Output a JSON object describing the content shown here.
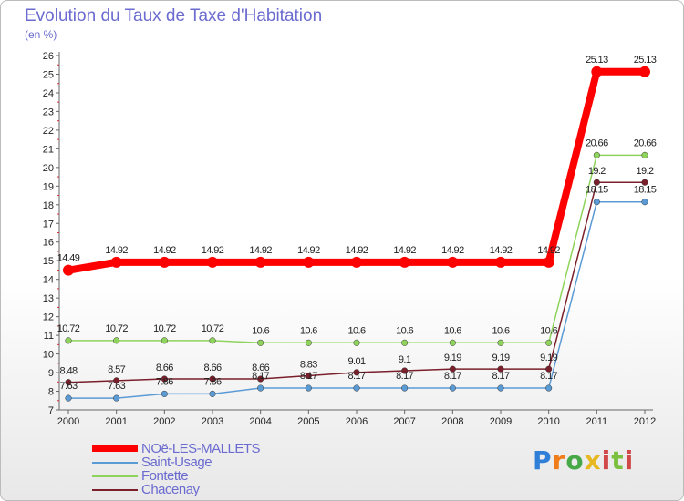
{
  "chart_data": {
    "type": "line",
    "title": "Evolution du Taux de Taxe d'Habitation",
    "unit": "(en %)",
    "x": [
      "2000",
      "2001",
      "2002",
      "2003",
      "2004",
      "2005",
      "2006",
      "2007",
      "2008",
      "2009",
      "2010",
      "2011",
      "2012"
    ],
    "y_ticks": [
      7,
      8,
      9,
      10,
      11,
      12,
      13,
      14,
      15,
      16,
      17,
      18,
      19,
      20,
      21,
      22,
      23,
      24,
      25,
      26
    ],
    "ylim": [
      7,
      26
    ],
    "grid": false,
    "legend_position": "bottom-left",
    "series": [
      {
        "name": "NOë-LES-MALLETS",
        "color": "#ff0000",
        "values": [
          14.49,
          14.92,
          14.92,
          14.92,
          14.92,
          14.92,
          14.92,
          14.92,
          14.92,
          14.92,
          14.92,
          25.13,
          25.13
        ]
      },
      {
        "name": "Saint-Usage",
        "color": "#5b9bd5",
        "values": [
          7.63,
          7.63,
          7.86,
          7.86,
          8.17,
          8.17,
          8.17,
          8.17,
          8.17,
          8.17,
          8.17,
          18.15,
          18.15
        ]
      },
      {
        "name": "Fontette",
        "color": "#8ed35c",
        "values": [
          10.72,
          10.72,
          10.72,
          10.72,
          10.6,
          10.6,
          10.6,
          10.6,
          10.6,
          10.6,
          10.6,
          20.66,
          20.66
        ]
      },
      {
        "name": "Chacenay",
        "color": "#7a1f2b",
        "values": [
          8.48,
          8.57,
          8.66,
          8.66,
          8.66,
          8.83,
          9.01,
          9.1,
          9.19,
          9.19,
          9.19,
          19.2,
          19.2
        ]
      }
    ]
  },
  "logo": {
    "p": "P",
    "r": "r",
    "o": "o",
    "x": "x",
    "i": "i",
    "t": "t",
    "i2": "i"
  }
}
